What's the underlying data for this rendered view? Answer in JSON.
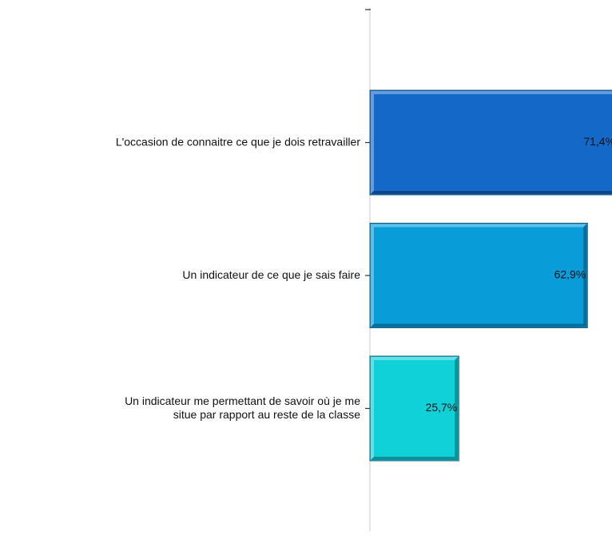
{
  "chart_data": {
    "type": "barh",
    "categories": [
      "L'occasion de connaitre ce que je dois retravailler",
      "Un indicateur de ce que je sais faire",
      "Un indicateur me permettant de savoir où je me\nsitue par rapport au reste de la classe"
    ],
    "values": [
      71.4,
      62.9,
      25.7
    ],
    "value_labels": [
      "71,4%",
      "62,9%",
      "25,7%"
    ],
    "colors": [
      "#1468c8",
      "#089cd8",
      "#10d0d8"
    ],
    "xlim": [
      0,
      70
    ]
  }
}
